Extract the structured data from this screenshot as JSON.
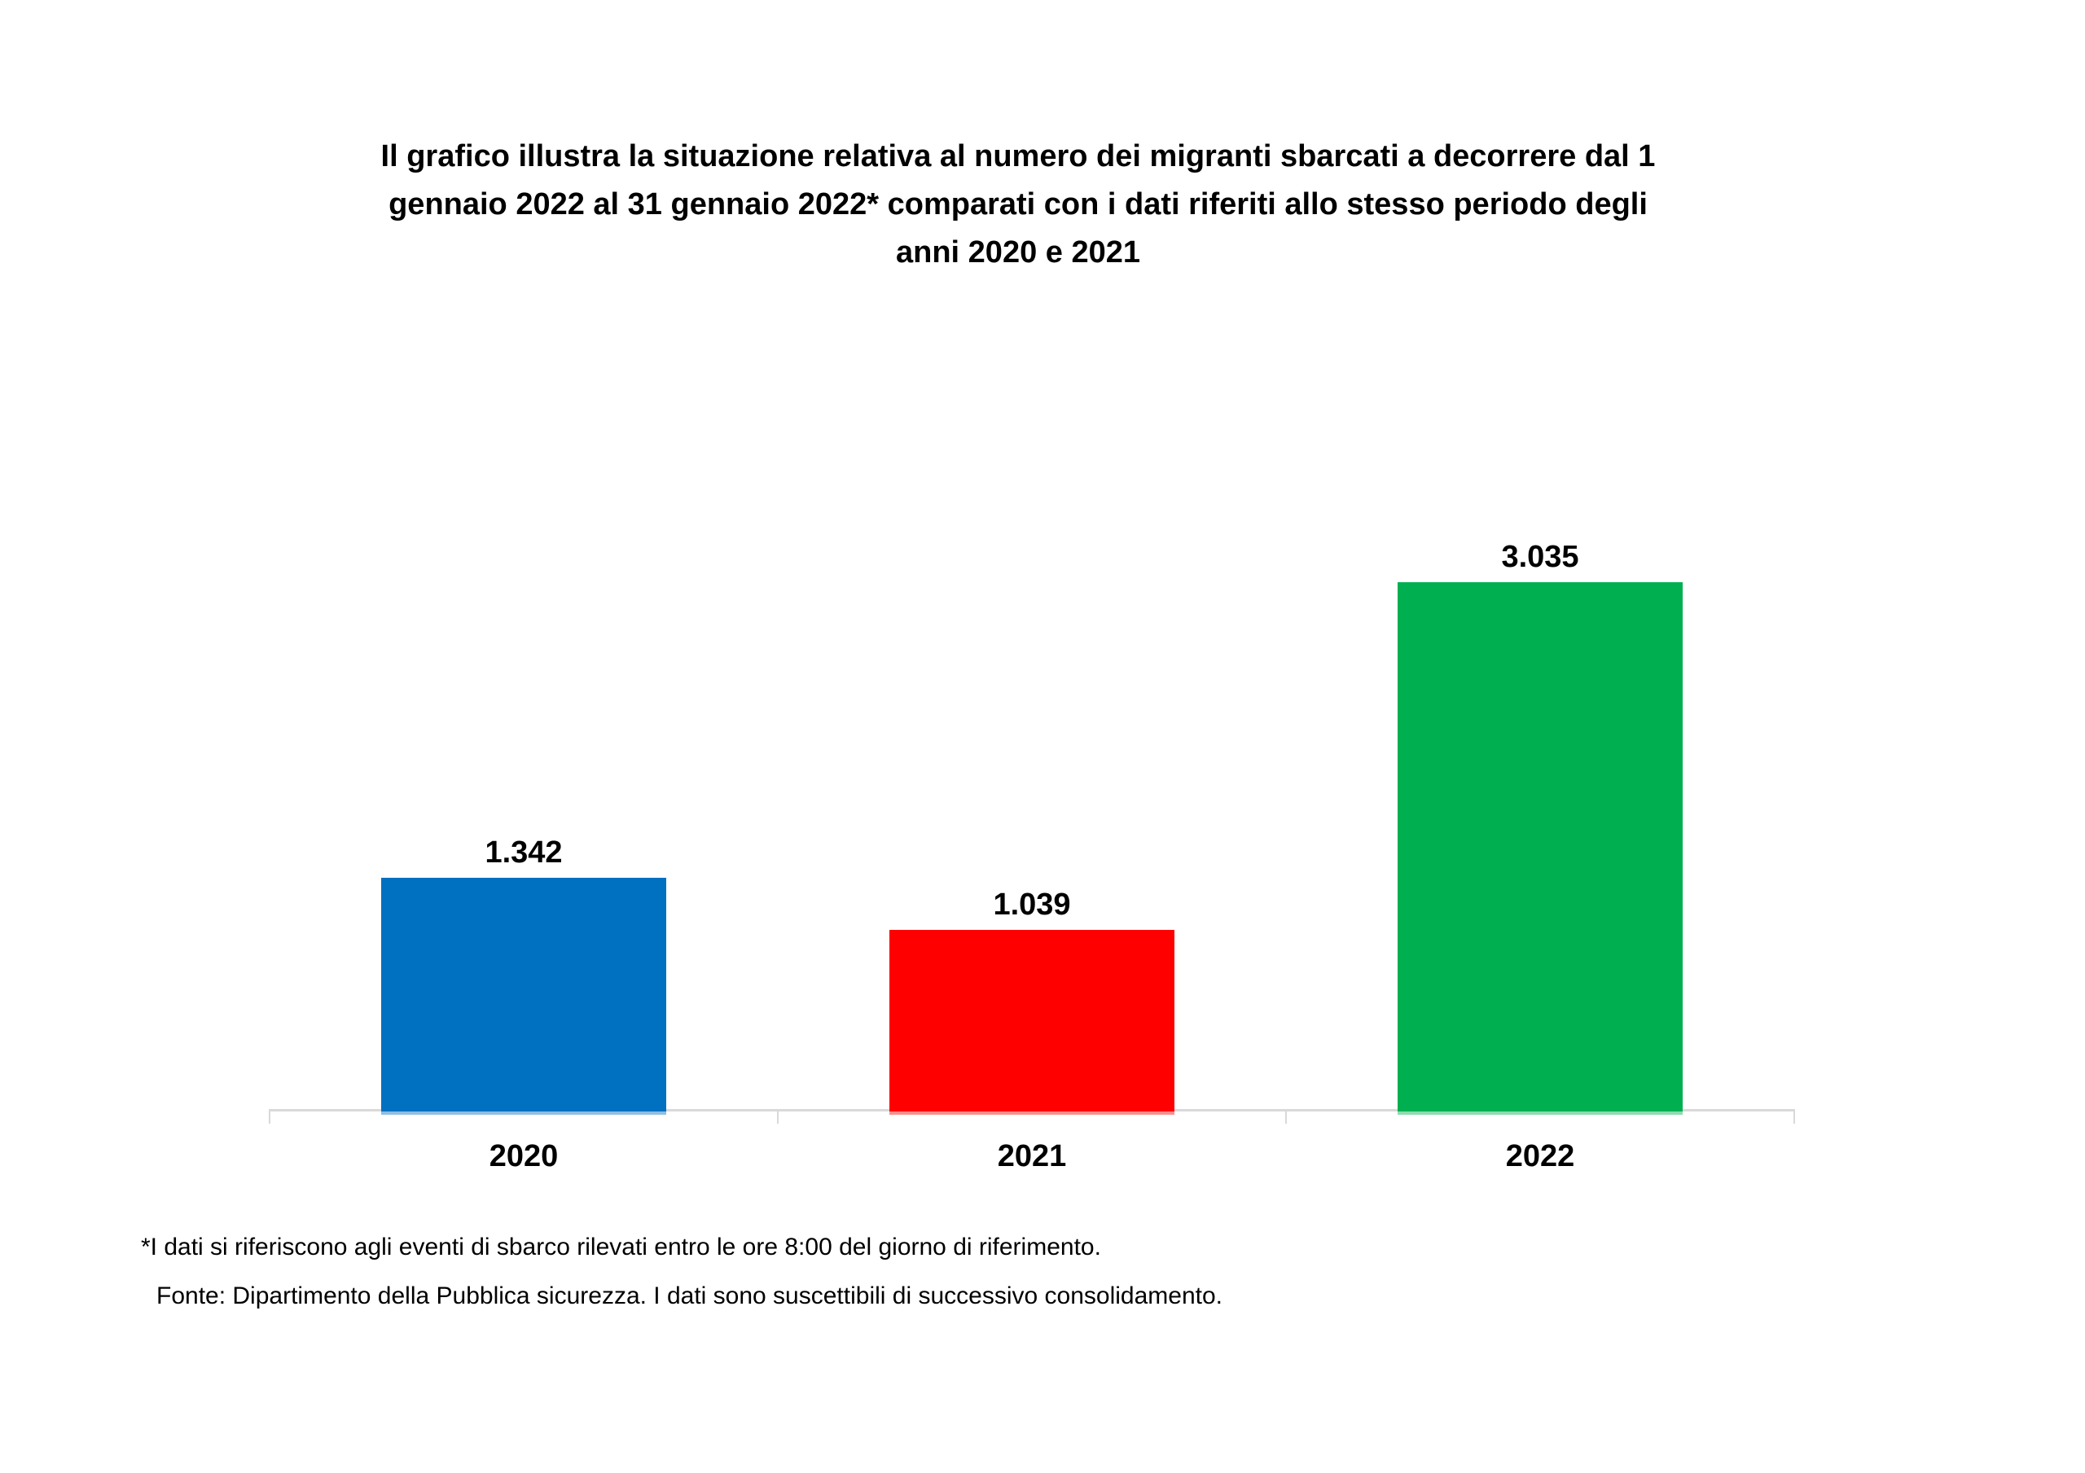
{
  "page": {
    "background": "#ffffff"
  },
  "title": {
    "lines": [
      "Il grafico illustra la situazione relativa al numero dei migranti sbarcati a decorrere dal 1",
      "gennaio 2022 al 31 gennaio 2022* comparati con i dati riferiti allo stesso periodo degli",
      "anni 2020 e 2021"
    ]
  },
  "chart_data": {
    "type": "bar",
    "title": "Il grafico illustra la situazione relativa al numero dei migranti sbarcati a decorrere dal 1 gennaio 2022 al 31 gennaio 2022* comparati con i dati riferiti allo stesso periodo degli anni 2020 e 2021",
    "categories": [
      "2020",
      "2021",
      "2022"
    ],
    "values": [
      1342,
      1039,
      3035
    ],
    "value_labels": [
      "1.342",
      "1.039",
      "3.035"
    ],
    "bar_colors": [
      "#0070C0",
      "#FF0000",
      "#00B050"
    ],
    "xlabel": "",
    "ylabel": "",
    "grid": false,
    "legend": false,
    "y_axis_visible": false,
    "value_label_position": "above-bar",
    "axis_color": "#D9D9D9",
    "text_color": "#000000"
  },
  "footnotes": [
    "*I dati si riferiscono agli eventi di sbarco rilevati entro le ore 8:00 del giorno di riferimento.",
    "Fonte: Dipartimento della Pubblica sicurezza. I dati sono suscettibili di successivo consolidamento."
  ]
}
